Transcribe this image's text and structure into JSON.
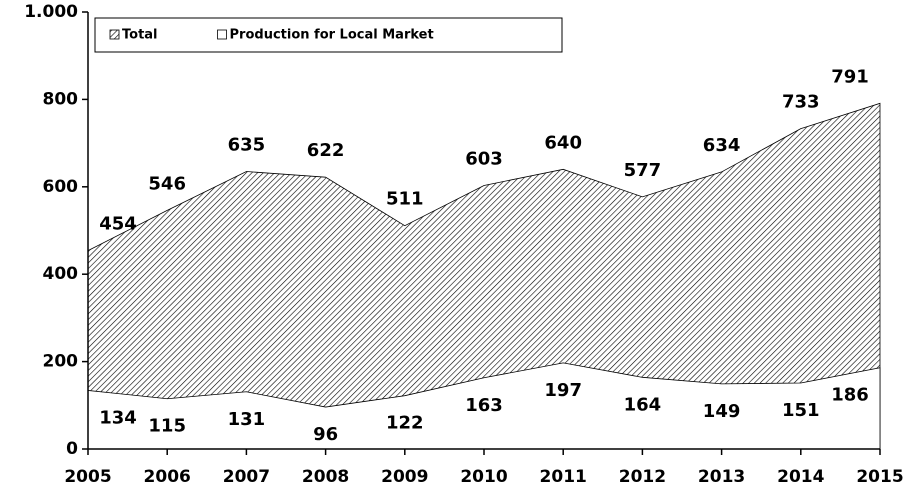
{
  "chart_data": {
    "type": "area",
    "x": [
      2005,
      2006,
      2007,
      2008,
      2009,
      2010,
      2011,
      2012,
      2013,
      2014,
      2015
    ],
    "series": [
      {
        "name": "Total",
        "color": "#000000",
        "hatch": true,
        "values": [
          454,
          546,
          635,
          622,
          511,
          603,
          640,
          577,
          634,
          733,
          791
        ]
      },
      {
        "name": "Production for Local Market",
        "color": "#ffffff",
        "hatch": false,
        "values": [
          134,
          115,
          131,
          96,
          122,
          163,
          197,
          164,
          149,
          151,
          186
        ]
      }
    ],
    "xlim": [
      2005,
      2015
    ],
    "xticks": [
      2005,
      2006,
      2007,
      2008,
      2009,
      2010,
      2011,
      2012,
      2013,
      2014,
      2015
    ],
    "ylim": [
      0,
      1000
    ],
    "yticks": [
      0,
      200,
      400,
      600,
      800,
      {
        "value": 1000,
        "label": "1.000"
      }
    ],
    "grid": false,
    "legend": "top"
  }
}
